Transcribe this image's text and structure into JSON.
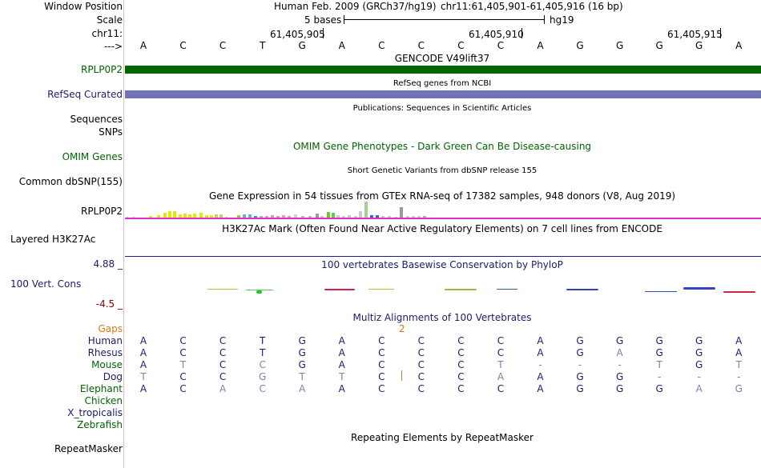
{
  "labels": {
    "window_position": "Window Position",
    "scale": "Scale",
    "chrom": "chr11:",
    "arrow": "--->",
    "gencode_gene": "RPLP0P2",
    "refseq": "RefSeq Curated",
    "sequences": "Sequences",
    "snps": "SNPs",
    "omim": "OMIM Genes",
    "dbsnp": "Common dbSNP(155)",
    "gtex_gene": "RPLP0P2",
    "h3k27ac": "Layered H3K27Ac",
    "cons_max": "4.88 _",
    "cons_name": "100 Vert. Cons",
    "cons_min": "-4.5 _",
    "gaps": "Gaps",
    "species": [
      "Human",
      "Rhesus",
      "Mouse",
      "Dog",
      "Elephant",
      "Chicken",
      "X_tropicalis",
      "Zebrafish"
    ],
    "repeatmasker": "RepeatMasker"
  },
  "ruler": {
    "assembly": "Human Feb. 2009 (GRCh37/hg19)",
    "position": "chr11:61,405,901-61,405,916 (16 bp)",
    "scale_text": "5 bases",
    "db": "hg19",
    "ticks": [
      "61,405,905",
      "61,405,910",
      "61,405,915"
    ],
    "bases": [
      "A",
      "C",
      "C",
      "T",
      "G",
      "A",
      "C",
      "C",
      "C",
      "C",
      "A",
      "G",
      "G",
      "G",
      "G",
      "A"
    ]
  },
  "tracks": {
    "gencode": "GENCODE V49lift37",
    "refseq": "RefSeq genes from NCBI",
    "publications": "Publications: Sequences in Scientific Articles",
    "omim": "OMIM Gene Phenotypes - Dark Green Can Be Disease-causing",
    "dbsnp": "Short Genetic Variants from dbSNP release 155",
    "gtex": "Gene Expression in 54 tissues from GTEx RNA-seq of 17382 samples, 948 donors (V8, Aug 2019)",
    "h3k27ac": "H3K27Ac Mark (Often Found Near Active Regulatory Elements) on 7 cell lines from ENCODE",
    "phylop": "100 vertebrates Basewise Conservation by PhyloP",
    "multiz": "Multiz Alignments of 100 Vertebrates",
    "gap_value": "2",
    "repeatmasker": "Repeating Elements by RepeatMasker"
  },
  "alignment": {
    "Human": [
      "A",
      "C",
      "C",
      "T",
      "G",
      "A",
      "C",
      "C",
      "C",
      "C",
      "A",
      "G",
      "G",
      "G",
      "G",
      "A"
    ],
    "Rhesus": [
      "A",
      "C",
      "C",
      "T",
      "G",
      "A",
      "C",
      "C",
      "C",
      "C",
      "A",
      "G",
      "A",
      "G",
      "G",
      "A"
    ],
    "Mouse": [
      "A",
      "T",
      "C",
      "C",
      "G",
      "A",
      "C",
      "C",
      "C",
      "T",
      "-",
      "-",
      "-",
      "T",
      "G",
      "T"
    ],
    "Dog": [
      "T",
      "C",
      "C",
      "G",
      "T",
      "T",
      "C",
      "C",
      "C",
      "A",
      "A",
      "G",
      "G",
      "-",
      "-",
      "-"
    ],
    "Elephant": [
      "A",
      "C",
      "A",
      "C",
      "A",
      "A",
      "C",
      "C",
      "C",
      "C",
      "A",
      "G",
      "G",
      "G",
      "A",
      "G"
    ]
  },
  "colors": {
    "label_default": "#000000",
    "label_gencode": "#006400",
    "label_refseq": "#1c1c6e",
    "label_omim": "#006400",
    "label_cons": "#1c1c6e",
    "label_cons_min": "#800000",
    "label_gaps": "#d2781e",
    "gencode_bar": "#006400",
    "refseq_bar": "#7171b5",
    "gtex_baseline": "#d633d6",
    "h3k27ac_line": "#1c1c9e",
    "base_match": "#1c1c6e",
    "base_mismatch": "#7f7fb0",
    "omim_title": "#006400"
  }
}
